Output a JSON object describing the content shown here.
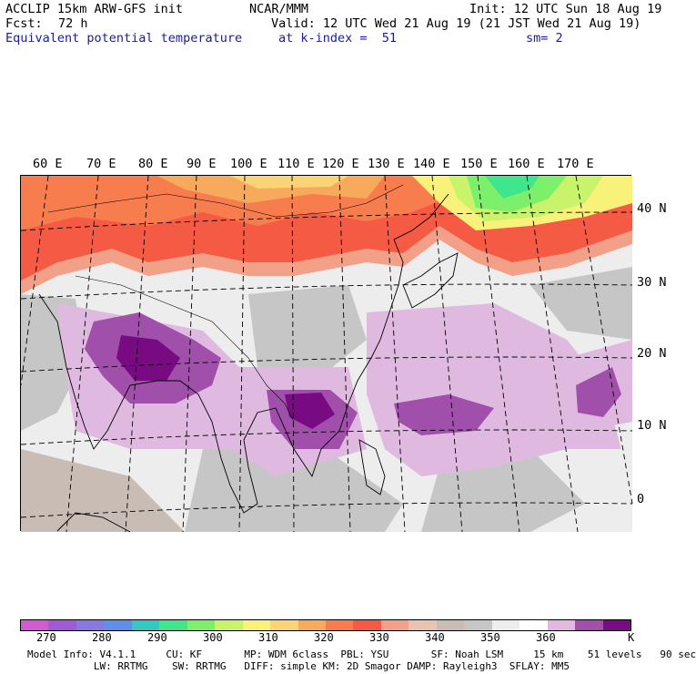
{
  "header": {
    "model": "ACCLIP 15km ARW-GFS init",
    "center": "NCAR/MMM",
    "init": "Init: 12 UTC Sun 18 Aug 19",
    "fcst_label": "Fcst:",
    "fcst_value": "72 h",
    "valid": "Valid: 12 UTC Wed 21 Aug 19 (21 JST Wed 21 Aug 19)",
    "field": "Equivalent potential temperature",
    "level": "at k-index =  51",
    "smoothing": "sm= 2"
  },
  "map": {
    "lon_labels": [
      "60 E",
      "70 E",
      "80 E",
      "90 E",
      "100 E",
      "110 E",
      "120 E",
      "130 E",
      "140 E",
      "150 E",
      "160 E",
      "170 E"
    ],
    "lat_labels": [
      "40 N",
      "30 N",
      "20 N",
      "10 N",
      "0"
    ]
  },
  "colorbar": {
    "unit": "K",
    "tick_labels": [
      "270",
      "280",
      "290",
      "300",
      "310",
      "320",
      "330",
      "340",
      "350",
      "360"
    ],
    "colors": [
      "#d15cd1",
      "#a05ad8",
      "#8a78e0",
      "#5f8fe8",
      "#35c8c0",
      "#3fe68c",
      "#7cf06a",
      "#c8f36a",
      "#f9f27a",
      "#fad476",
      "#f8aa5c",
      "#f77d4e",
      "#f55a45",
      "#f2a088",
      "#e8c3b2",
      "#c8bcb4",
      "#c6c6c6",
      "#ededed",
      "#ffffff",
      "#e0b9e1",
      "#a050aa",
      "#780a82"
    ]
  },
  "footer": {
    "line1": "Model Info: V4.1.1     CU: KF       MP: WDM 6class  PBL: YSU       SF: Noah LSM     15 km    51 levels   90 sec",
    "line2": "           LW: RRTMG    SW: RRTMG   DIFF: simple KM: 2D Smagor DAMP: Rayleigh3  SFLAY: MM5"
  }
}
